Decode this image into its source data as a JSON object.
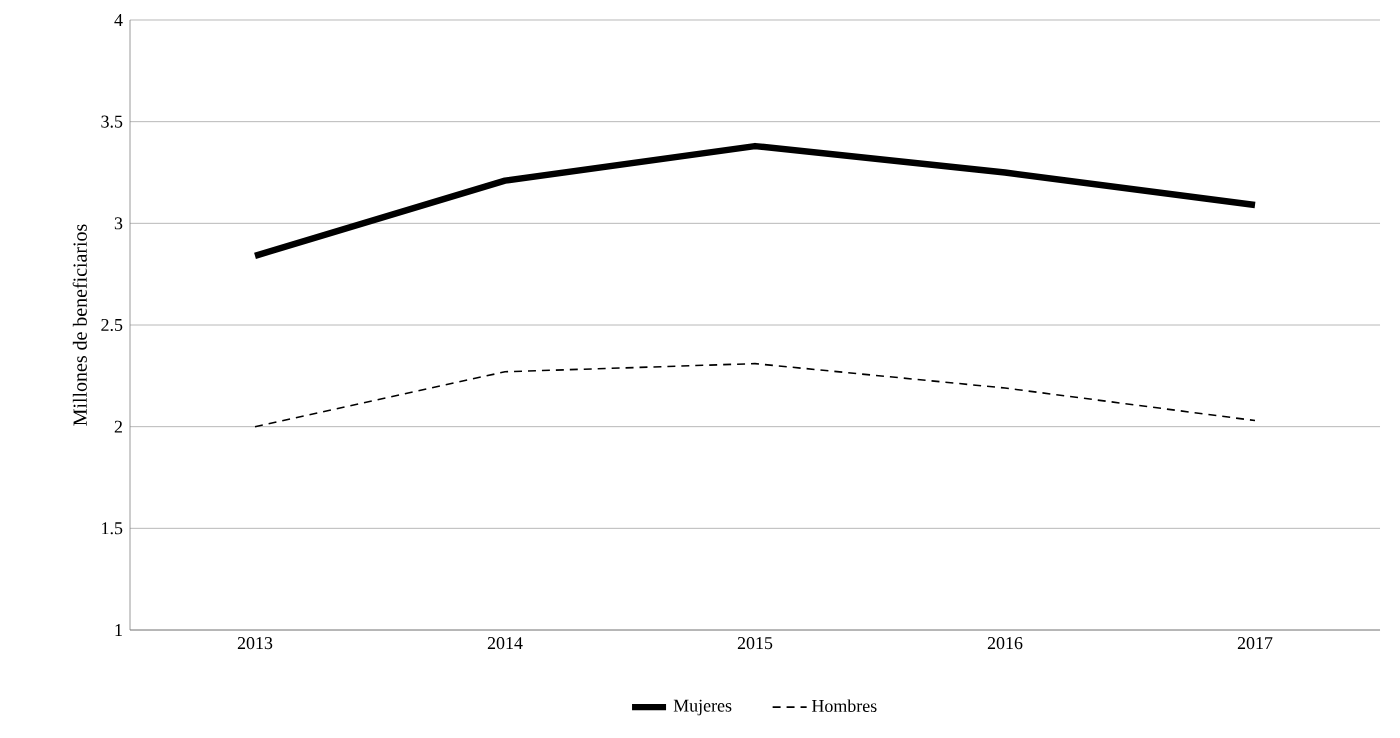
{
  "chart_data": {
    "type": "line",
    "ylabel": "Millones de beneficiarios",
    "categories": [
      "2013",
      "2014",
      "2015",
      "2016",
      "2017"
    ],
    "series": [
      {
        "name": "Mujeres",
        "color": "#000000",
        "line_style": "solid",
        "values": [
          2.84,
          3.21,
          3.38,
          3.25,
          3.09
        ]
      },
      {
        "name": "Hombres",
        "color": "#000000",
        "line_style": "dashed",
        "values": [
          2.0,
          2.27,
          2.31,
          2.19,
          2.03
        ]
      }
    ],
    "ylim": [
      1,
      4
    ],
    "yticks": [
      1,
      1.5,
      2,
      2.5,
      3,
      3.5,
      4
    ],
    "grid": "y",
    "legend": "bottom",
    "marker": "none"
  }
}
